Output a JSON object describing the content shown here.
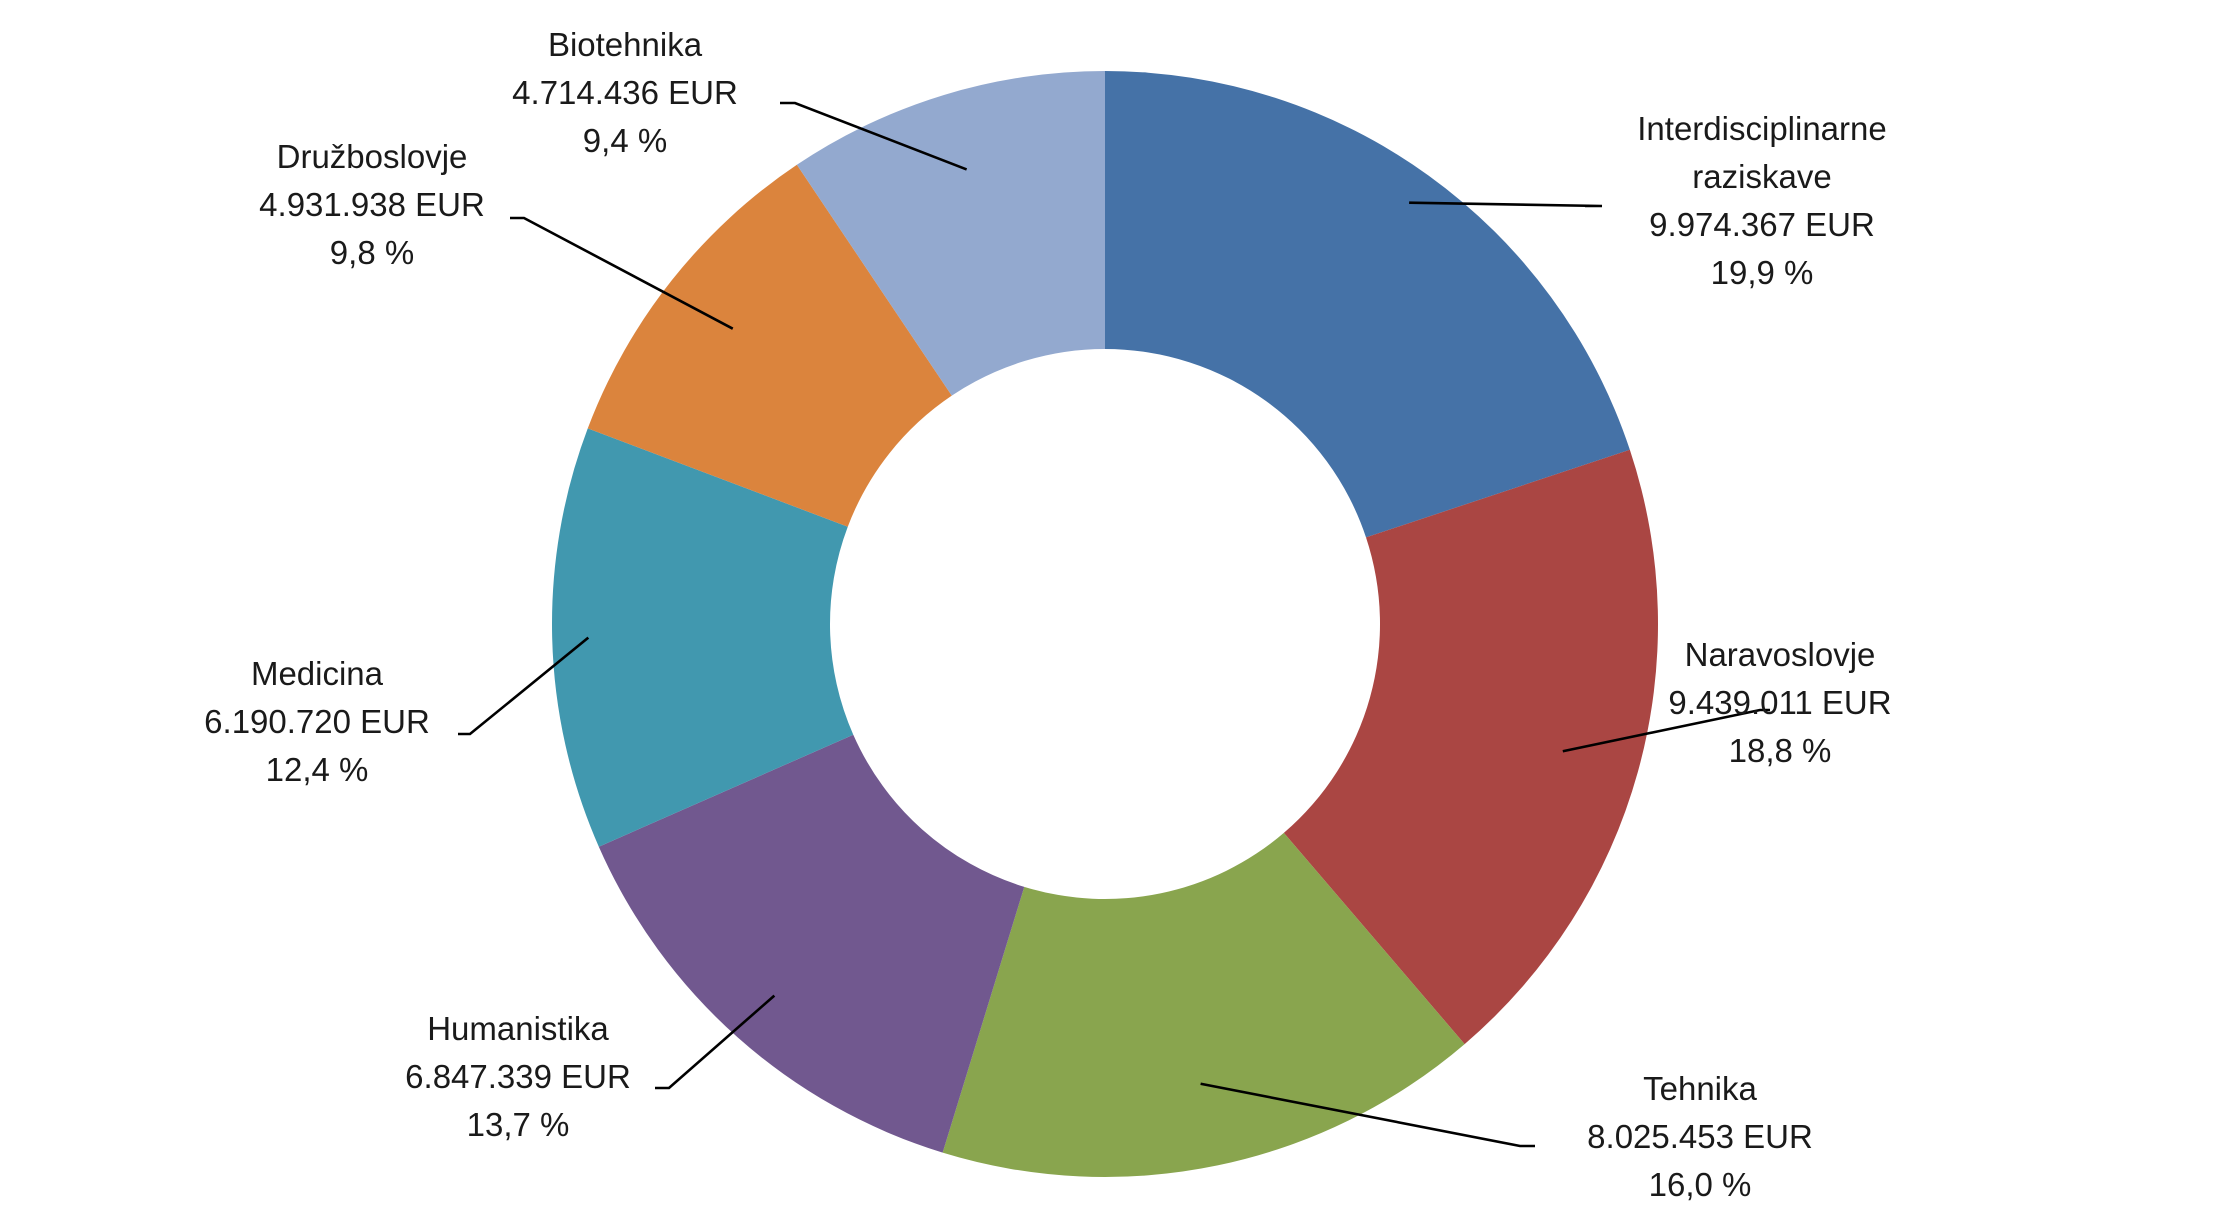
{
  "chart_data": {
    "type": "pie",
    "donut": true,
    "start_angle_deg": 0,
    "direction": "clockwise",
    "legend": "none",
    "colors": {
      "Interdisciplinarne raziskave": "#4572A7",
      "Naravoslovje": "#AA4643",
      "Tehnika": "#89A54E",
      "Humanistika": "#71588F",
      "Medicina": "#4198AF",
      "Družboslovje": "#DB843D",
      "Biotehnika": "#93A9CF"
    },
    "slices": [
      {
        "name": "Interdisciplinarne raziskave",
        "label_lines": [
          "Interdisciplinarne",
          "raziskave"
        ],
        "value": 9974367,
        "value_text": "9.974.367 EUR",
        "percent": 19.9,
        "percent_text": "19,9 %"
      },
      {
        "name": "Naravoslovje",
        "label_lines": [
          "Naravoslovje"
        ],
        "value": 9439011,
        "value_text": "9.439.011 EUR",
        "percent": 18.8,
        "percent_text": "18,8 %"
      },
      {
        "name": "Tehnika",
        "label_lines": [
          "Tehnika"
        ],
        "value": 8025453,
        "value_text": "8.025.453 EUR",
        "percent": 16.0,
        "percent_text": "16,0 %"
      },
      {
        "name": "Humanistika",
        "label_lines": [
          "Humanistika"
        ],
        "value": 6847339,
        "value_text": "6.847.339 EUR",
        "percent": 13.7,
        "percent_text": "13,7 %"
      },
      {
        "name": "Medicina",
        "label_lines": [
          "Medicina"
        ],
        "value": 6190720,
        "value_text": "6.190.720 EUR",
        "percent": 12.4,
        "percent_text": "12,4 %"
      },
      {
        "name": "Družboslovje",
        "label_lines": [
          "Družboslovje"
        ],
        "value": 4931938,
        "value_text": "4.931.938 EUR",
        "percent": 9.8,
        "percent_text": "9,8 %"
      },
      {
        "name": "Biotehnika",
        "label_lines": [
          "Biotehnika"
        ],
        "value": 4714436,
        "value_text": "4.714.436 EUR",
        "percent": 9.4,
        "percent_text": "9,4 %"
      }
    ]
  }
}
